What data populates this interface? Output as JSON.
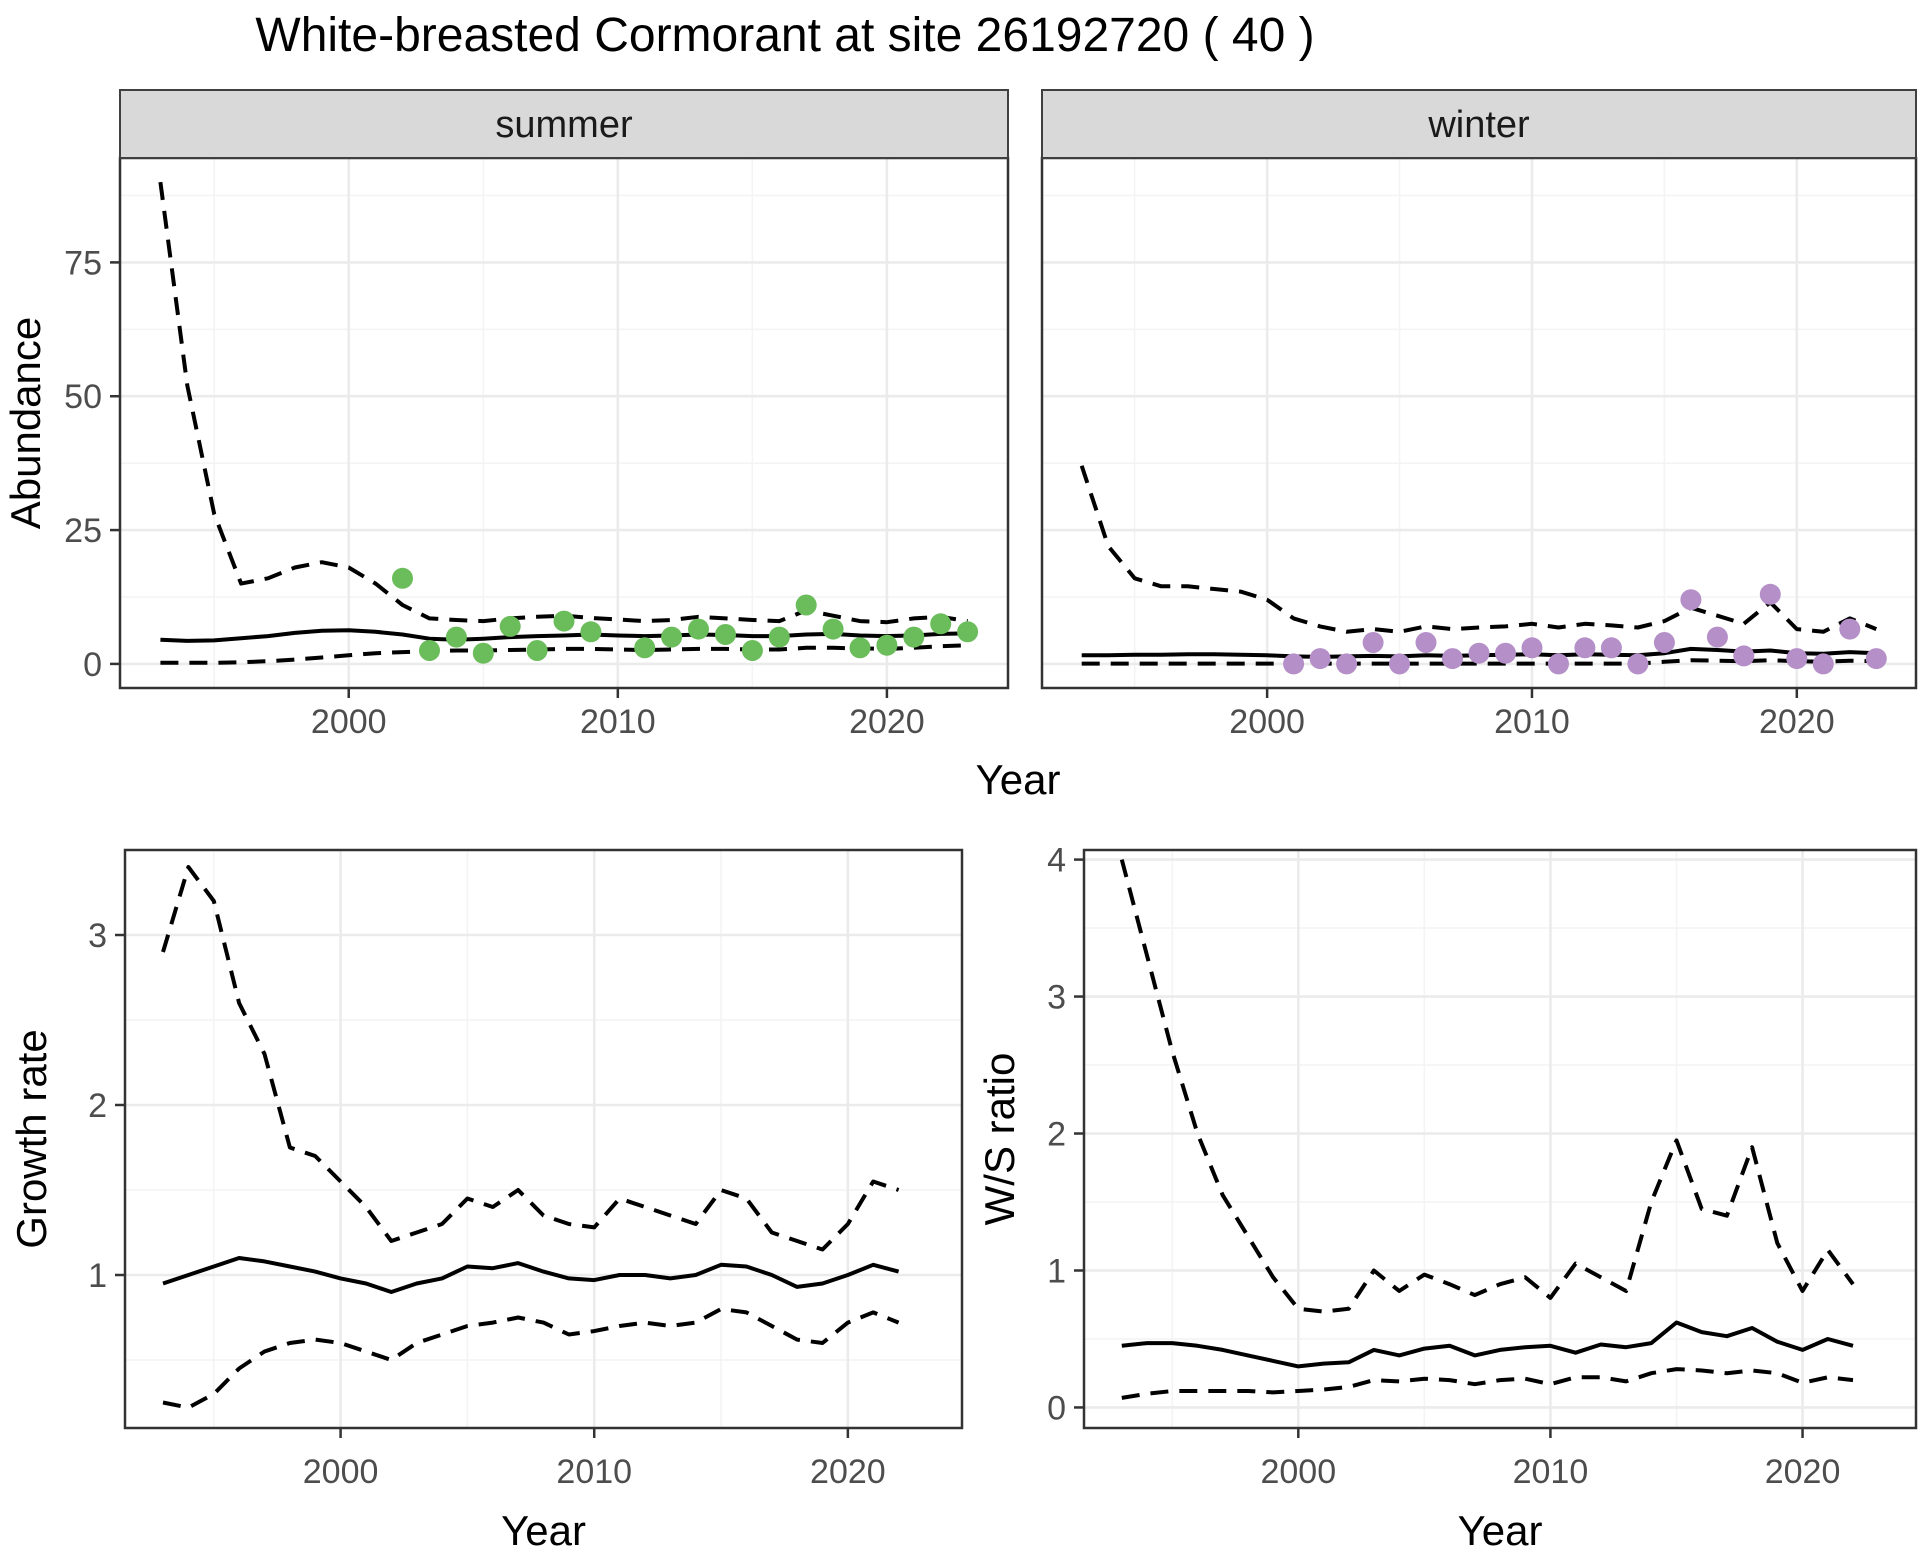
{
  "title": "White-breasted Cormorant at site 26192720 ( 40 )",
  "colors": {
    "summer_point": "#6ABD5A",
    "winter_point": "#B48FC8",
    "line": "#000000",
    "strip_bg": "#D9D9D9",
    "strip_border": "#404040",
    "panel_border": "#333333",
    "grid_major": "#EBEBEB",
    "grid_minor": "#F4F4F4",
    "tick_text": "#4D4D4D",
    "axis_text": "#000000"
  },
  "chart_data": [
    {
      "id": "abundance_summer",
      "type": "line",
      "facet_label": "summer",
      "ylabel": "Abundance",
      "xlabel": "Year",
      "xlim": [
        1991.5,
        2024.5
      ],
      "ylim": [
        -4.5,
        94.5
      ],
      "xticks": [
        2000,
        2010,
        2020
      ],
      "xminor": [
        1995,
        2005,
        2015
      ],
      "yticks": [
        0,
        25,
        50,
        75
      ],
      "yminor": [
        12.5,
        37.5,
        62.5,
        87.5
      ],
      "grid": true,
      "legend": "none",
      "years": [
        1993,
        1994,
        1995,
        1996,
        1997,
        1998,
        1999,
        2000,
        2001,
        2002,
        2003,
        2004,
        2005,
        2006,
        2007,
        2008,
        2009,
        2010,
        2011,
        2012,
        2013,
        2014,
        2015,
        2016,
        2017,
        2018,
        2019,
        2020,
        2021,
        2022,
        2023
      ],
      "series": [
        {
          "name": "fit",
          "style": "solid",
          "values": [
            4.5,
            4.3,
            4.4,
            4.8,
            5.2,
            5.8,
            6.2,
            6.3,
            6.0,
            5.5,
            4.7,
            4.5,
            4.7,
            5.0,
            5.2,
            5.3,
            5.5,
            5.3,
            5.2,
            5.3,
            5.5,
            5.4,
            5.2,
            5.2,
            5.5,
            5.6,
            5.3,
            5.2,
            5.3,
            5.6,
            5.7
          ]
        },
        {
          "name": "upper_ci",
          "style": "dashed",
          "values": [
            90,
            52,
            28,
            15,
            16,
            18,
            19,
            18,
            15,
            11,
            8.5,
            8.2,
            8,
            8.5,
            8.8,
            9,
            8.6,
            8.3,
            8,
            8.2,
            8.8,
            8.5,
            8.2,
            8,
            10,
            9,
            8,
            7.8,
            8.5,
            8.8,
            8
          ]
        },
        {
          "name": "lower_ci",
          "style": "dashed",
          "values": [
            0.2,
            0.2,
            0.2,
            0.3,
            0.5,
            0.8,
            1.2,
            1.6,
            2,
            2.2,
            2.4,
            2.5,
            2.5,
            2.6,
            2.7,
            2.8,
            2.8,
            2.7,
            2.6,
            2.7,
            2.8,
            2.8,
            2.7,
            2.7,
            3,
            3,
            2.9,
            2.8,
            3,
            3.3,
            3.5
          ]
        }
      ],
      "points": {
        "name": "observed_counts",
        "color_key": "summer_point",
        "years": [
          2002,
          2003,
          2004,
          2005,
          2006,
          2007,
          2008,
          2009,
          2011,
          2012,
          2013,
          2014,
          2015,
          2016,
          2017,
          2018,
          2019,
          2020,
          2021,
          2022,
          2023
        ],
        "values": [
          16,
          2.5,
          5,
          2,
          7,
          2.5,
          8,
          6,
          3,
          5,
          6.5,
          5.5,
          2.5,
          5,
          11,
          6.5,
          3,
          3.5,
          5,
          7.5,
          6
        ]
      }
    },
    {
      "id": "abundance_winter",
      "type": "line",
      "facet_label": "winter",
      "ylabel": "Abundance",
      "xlabel": "Year",
      "xlim": [
        1991.5,
        2024.5
      ],
      "ylim": [
        -4.5,
        94.5
      ],
      "xticks": [
        2000,
        2010,
        2020
      ],
      "xminor": [
        1995,
        2005,
        2015
      ],
      "yticks": [
        0,
        25,
        50,
        75
      ],
      "yminor": [
        12.5,
        37.5,
        62.5,
        87.5
      ],
      "grid": true,
      "legend": "none",
      "years": [
        1993,
        1994,
        1995,
        1996,
        1997,
        1998,
        1999,
        2000,
        2001,
        2002,
        2003,
        2004,
        2005,
        2006,
        2007,
        2008,
        2009,
        2010,
        2011,
        2012,
        2013,
        2014,
        2015,
        2016,
        2017,
        2018,
        2019,
        2020,
        2021,
        2022,
        2023
      ],
      "series": [
        {
          "name": "fit",
          "style": "solid",
          "values": [
            1.6,
            1.6,
            1.7,
            1.7,
            1.8,
            1.8,
            1.7,
            1.6,
            1.4,
            1.3,
            1.4,
            1.5,
            1.4,
            1.6,
            1.5,
            1.6,
            1.7,
            1.8,
            1.6,
            1.8,
            1.7,
            1.6,
            2.0,
            2.8,
            2.6,
            2.3,
            2.5,
            2.0,
            1.9,
            2.2,
            2.0
          ]
        },
        {
          "name": "upper_ci",
          "style": "dashed",
          "values": [
            37,
            22,
            16,
            14.5,
            14.5,
            14,
            13.5,
            12,
            8.5,
            7,
            6,
            6.5,
            6,
            7,
            6.5,
            6.8,
            7,
            7.5,
            6.8,
            7.5,
            7.2,
            6.8,
            8,
            10.5,
            9,
            7.5,
            11.5,
            6.5,
            6,
            8.5,
            6.5
          ]
        },
        {
          "name": "lower_ci",
          "style": "dashed",
          "values": [
            0.05,
            0.05,
            0.05,
            0.05,
            0.05,
            0.05,
            0.05,
            0.05,
            0.05,
            0.05,
            0.05,
            0.05,
            0.05,
            0.05,
            0.05,
            0.05,
            0.05,
            0.05,
            0.05,
            0.05,
            0.05,
            0.05,
            0.4,
            0.7,
            0.6,
            0.5,
            0.7,
            0.5,
            0.4,
            0.6,
            0.5
          ]
        }
      ],
      "points": {
        "name": "observed_counts",
        "color_key": "winter_point",
        "years": [
          2001,
          2002,
          2003,
          2004,
          2005,
          2006,
          2007,
          2008,
          2009,
          2010,
          2011,
          2012,
          2013,
          2014,
          2015,
          2016,
          2017,
          2018,
          2019,
          2020,
          2021,
          2022,
          2023
        ],
        "values": [
          0,
          1,
          0,
          4,
          0,
          4,
          1,
          2,
          2,
          3,
          0,
          3,
          3,
          0,
          4,
          12,
          5,
          1.5,
          13,
          1,
          0,
          6.5,
          1
        ]
      }
    },
    {
      "id": "growth_rate",
      "type": "line",
      "facet_label": null,
      "ylabel": "Growth rate",
      "xlabel": "Year",
      "xlim": [
        1991.5,
        2024.5
      ],
      "ylim": [
        0.1,
        3.5
      ],
      "xticks": [
        2000,
        2010,
        2020
      ],
      "xminor": [
        1995,
        2005,
        2015
      ],
      "yticks": [
        1,
        2,
        3
      ],
      "yminor": [
        0.5,
        1.5,
        2.5
      ],
      "grid": true,
      "legend": "none",
      "years": [
        1993,
        1994,
        1995,
        1996,
        1997,
        1998,
        1999,
        2000,
        2001,
        2002,
        2003,
        2004,
        2005,
        2006,
        2007,
        2008,
        2009,
        2010,
        2011,
        2012,
        2013,
        2014,
        2015,
        2016,
        2017,
        2018,
        2019,
        2020,
        2021,
        2022
      ],
      "series": [
        {
          "name": "fit",
          "style": "solid",
          "values": [
            0.95,
            1.0,
            1.05,
            1.1,
            1.08,
            1.05,
            1.02,
            0.98,
            0.95,
            0.9,
            0.95,
            0.98,
            1.05,
            1.04,
            1.07,
            1.02,
            0.98,
            0.97,
            1.0,
            1.0,
            0.98,
            1.0,
            1.06,
            1.05,
            1.0,
            0.93,
            0.95,
            1.0,
            1.06,
            1.02
          ]
        },
        {
          "name": "upper_ci",
          "style": "dashed",
          "values": [
            2.9,
            3.4,
            3.2,
            2.6,
            2.3,
            1.75,
            1.7,
            1.55,
            1.4,
            1.2,
            1.25,
            1.3,
            1.45,
            1.4,
            1.5,
            1.35,
            1.3,
            1.28,
            1.45,
            1.4,
            1.35,
            1.3,
            1.5,
            1.45,
            1.25,
            1.2,
            1.15,
            1.3,
            1.55,
            1.5
          ]
        },
        {
          "name": "lower_ci",
          "style": "dashed",
          "values": [
            0.25,
            0.22,
            0.3,
            0.45,
            0.55,
            0.6,
            0.62,
            0.6,
            0.55,
            0.5,
            0.6,
            0.65,
            0.7,
            0.72,
            0.75,
            0.72,
            0.65,
            0.67,
            0.7,
            0.72,
            0.7,
            0.72,
            0.8,
            0.78,
            0.7,
            0.62,
            0.6,
            0.72,
            0.78,
            0.72
          ]
        }
      ],
      "points": null
    },
    {
      "id": "ws_ratio",
      "type": "line",
      "facet_label": null,
      "ylabel": "W/S ratio",
      "xlabel": "Year",
      "xlim": [
        1991.5,
        2024.5
      ],
      "ylim": [
        -0.15,
        4.07
      ],
      "xticks": [
        2000,
        2010,
        2020
      ],
      "xminor": [
        1995,
        2005,
        2015
      ],
      "yticks": [
        0,
        1,
        2,
        3,
        4
      ],
      "yminor": [
        0.5,
        1.5,
        2.5,
        3.5
      ],
      "grid": true,
      "legend": "none",
      "years": [
        1993,
        1994,
        1995,
        1996,
        1997,
        1998,
        1999,
        2000,
        2001,
        2002,
        2003,
        2004,
        2005,
        2006,
        2007,
        2008,
        2009,
        2010,
        2011,
        2012,
        2013,
        2014,
        2015,
        2016,
        2017,
        2018,
        2019,
        2020,
        2021,
        2022
      ],
      "series": [
        {
          "name": "fit",
          "style": "solid",
          "values": [
            0.45,
            0.47,
            0.47,
            0.45,
            0.42,
            0.38,
            0.34,
            0.3,
            0.32,
            0.33,
            0.42,
            0.38,
            0.43,
            0.45,
            0.38,
            0.42,
            0.44,
            0.45,
            0.4,
            0.46,
            0.44,
            0.47,
            0.62,
            0.55,
            0.52,
            0.58,
            0.48,
            0.42,
            0.5,
            0.45
          ]
        },
        {
          "name": "upper_ci",
          "style": "dashed",
          "values": [
            4.0,
            3.3,
            2.6,
            2.0,
            1.55,
            1.25,
            0.95,
            0.72,
            0.7,
            0.72,
            1.0,
            0.85,
            0.97,
            0.9,
            0.82,
            0.9,
            0.95,
            0.8,
            1.05,
            0.95,
            0.85,
            1.5,
            1.95,
            1.45,
            1.4,
            1.9,
            1.2,
            0.85,
            1.15,
            0.9
          ]
        },
        {
          "name": "lower_ci",
          "style": "dashed",
          "values": [
            0.07,
            0.1,
            0.12,
            0.12,
            0.12,
            0.12,
            0.11,
            0.12,
            0.13,
            0.15,
            0.2,
            0.19,
            0.21,
            0.2,
            0.17,
            0.2,
            0.21,
            0.17,
            0.22,
            0.22,
            0.19,
            0.25,
            0.28,
            0.27,
            0.25,
            0.27,
            0.25,
            0.18,
            0.22,
            0.2
          ]
        }
      ],
      "points": null
    }
  ]
}
